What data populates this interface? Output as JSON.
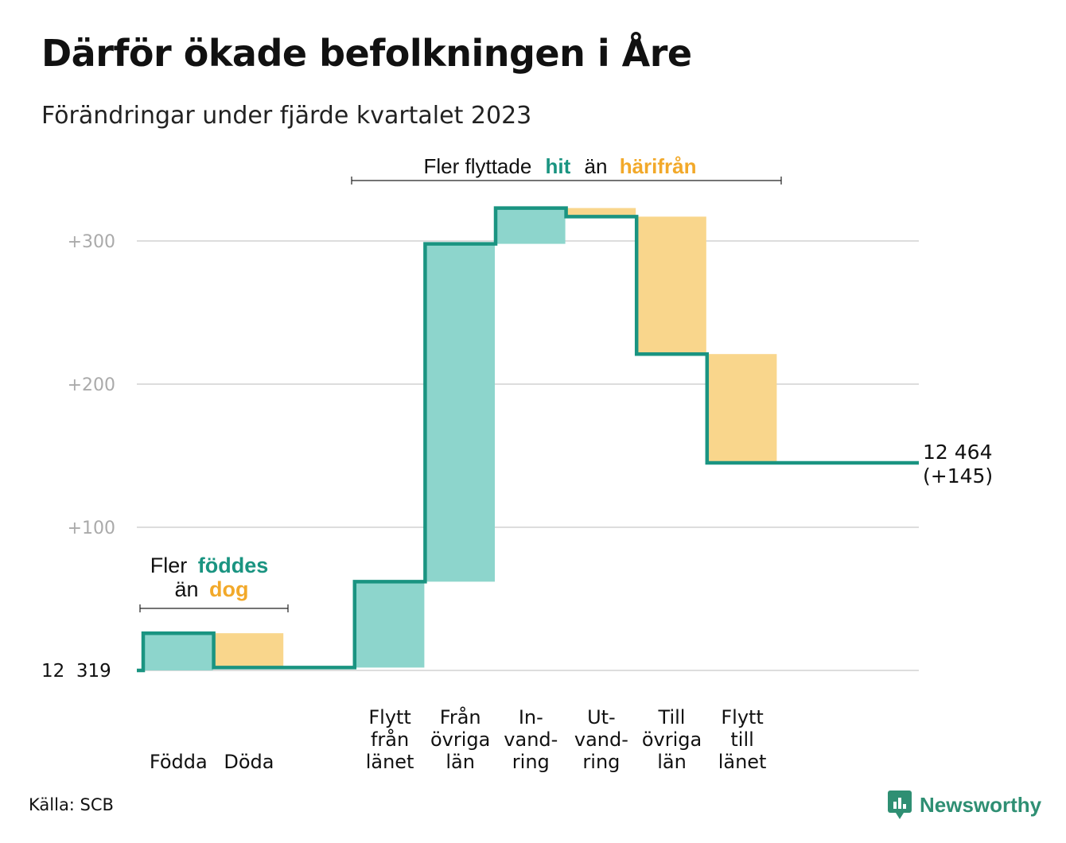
{
  "title": "Därför ökade befolkningen i Åre",
  "subtitle": "Förändringar under fjärde kvartalet 2023",
  "source": "Källa: SCB",
  "brand": "Newsworthy",
  "colors": {
    "increase_fill": "#8dd5cc",
    "decrease_fill": "#f9d68c",
    "line": "#1a9481",
    "teal_text": "#1a9481",
    "orange_text": "#f2a92a",
    "grid": "#dddddd",
    "tick_text": "#aaaaaa"
  },
  "annotations": {
    "birth": {
      "line1_pre": "Fler",
      "line1_highlight": "föddes",
      "line2_pre": "än",
      "line2_highlight": "dog"
    },
    "migration": {
      "pre": "Fler flyttade",
      "highlight1": "hit",
      "mid": "än",
      "highlight2": "härifrån"
    }
  },
  "end_label": {
    "population": "12 464",
    "change": "(+145)"
  },
  "start_label": "12  319",
  "chart_data": {
    "type": "waterfall",
    "title": "Därför ökade befolkningen i Åre",
    "subtitle": "Förändringar under fjärde kvartalet 2023",
    "start_value": 12319,
    "end_value": 12464,
    "total_change": 145,
    "y_tick_labels": [
      "+100",
      "+200",
      "+300"
    ],
    "y_tick_values": [
      100,
      200,
      300
    ],
    "ylim": [
      0,
      330
    ],
    "grid": true,
    "steps": [
      {
        "label_lines": [
          "Födda"
        ],
        "change": 26,
        "kind": "increase"
      },
      {
        "label_lines": [
          "Döda"
        ],
        "change": -24,
        "kind": "decrease"
      },
      {
        "label_lines": [],
        "change": 0,
        "kind": "gap"
      },
      {
        "label_lines": [
          "Flytt",
          "från",
          "länet"
        ],
        "change": 60,
        "kind": "increase"
      },
      {
        "label_lines": [
          "Från",
          "övriga",
          "län"
        ],
        "change": 236,
        "kind": "increase"
      },
      {
        "label_lines": [
          "In-",
          "vand-",
          "ring"
        ],
        "change": 25,
        "kind": "increase"
      },
      {
        "label_lines": [
          "Ut-",
          "vand-",
          "ring"
        ],
        "change": -6,
        "kind": "decrease"
      },
      {
        "label_lines": [
          "Till",
          "övriga",
          "län"
        ],
        "change": -96,
        "kind": "decrease"
      },
      {
        "label_lines": [
          "Flytt",
          "till",
          "länet"
        ],
        "change": -76,
        "kind": "decrease"
      }
    ]
  }
}
